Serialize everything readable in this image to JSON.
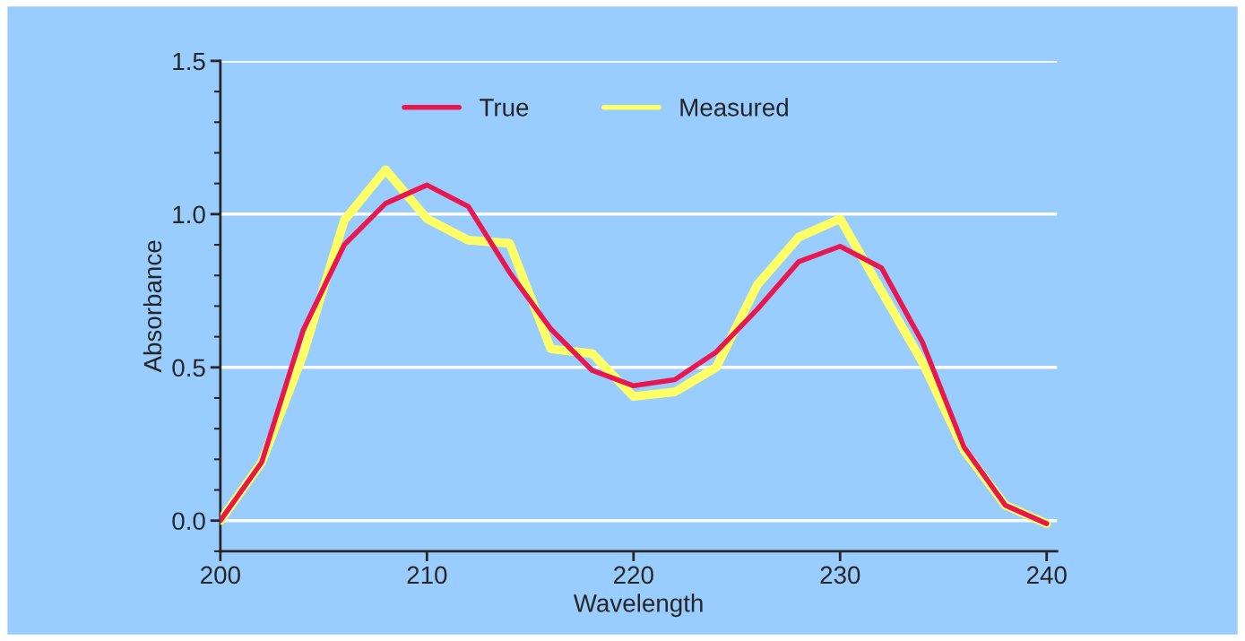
{
  "chart_data": {
    "type": "line",
    "xlabel": "Wavelength",
    "ylabel": "Absorbance",
    "x": [
      200,
      202,
      204,
      206,
      208,
      210,
      212,
      214,
      216,
      218,
      220,
      222,
      224,
      226,
      228,
      230,
      232,
      234,
      236,
      238,
      240
    ],
    "series": [
      {
        "name": "True",
        "color": "#e8174f",
        "values": [
          0.0,
          0.19,
          0.62,
          0.9,
          1.035,
          1.095,
          1.025,
          0.81,
          0.625,
          0.49,
          0.44,
          0.46,
          0.55,
          0.69,
          0.845,
          0.895,
          0.825,
          0.58,
          0.24,
          0.05,
          -0.01
        ]
      },
      {
        "name": "Measured",
        "color": "#ffff66",
        "values": [
          0.0,
          0.19,
          0.54,
          0.98,
          1.145,
          0.985,
          0.915,
          0.905,
          0.56,
          0.545,
          0.405,
          0.42,
          0.5,
          0.77,
          0.925,
          0.985,
          0.75,
          0.515,
          0.23,
          0.05,
          -0.01
        ]
      }
    ],
    "xlim": [
      200,
      240.5
    ],
    "xticks": [
      200,
      210,
      220,
      230,
      240
    ],
    "ylim": [
      -0.1,
      1.5
    ],
    "yticks": [
      {
        "value": 0,
        "label": "0.0"
      },
      {
        "value": 0.5,
        "label": "0.5"
      },
      {
        "value": 1,
        "label": "1.0"
      },
      {
        "value": 1.5,
        "label": "1.5"
      }
    ],
    "grid": "y",
    "legend": "top",
    "line_style": "solid",
    "marker": "none"
  }
}
